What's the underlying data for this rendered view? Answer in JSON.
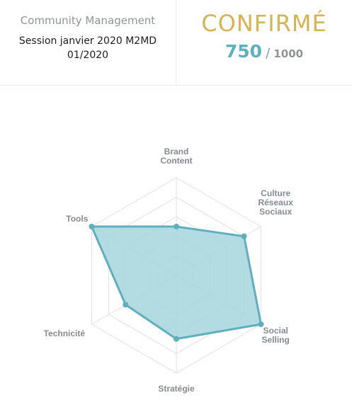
{
  "header": {
    "category": "Community Management",
    "session_line1": "Session janvier 2020 M2MD",
    "session_line2": "01/2020",
    "level": "CONFIRMÉ",
    "score": "750",
    "score_separator": "/",
    "score_max": "1000"
  },
  "colors": {
    "accent": "#5fb0bd",
    "fill": "#a6d5dd",
    "gold": "#d6b451",
    "grid": "#e0e0e0",
    "muted": "#8f939a"
  },
  "chart_data": {
    "type": "radar",
    "axes": [
      {
        "label": [
          "Brand",
          "Content"
        ]
      },
      {
        "label": [
          "Culture",
          "Réseaux",
          "Sociaux"
        ]
      },
      {
        "label": [
          "Social",
          "Selling"
        ]
      },
      {
        "label": [
          "Stratégie"
        ]
      },
      {
        "label": [
          "Technicité"
        ]
      },
      {
        "label": [
          "Tools"
        ]
      }
    ],
    "values": [
      0.5,
      0.8,
      1.0,
      0.65,
      0.6,
      1.0
    ],
    "range": [
      0,
      1
    ],
    "grid_levels": 5
  }
}
